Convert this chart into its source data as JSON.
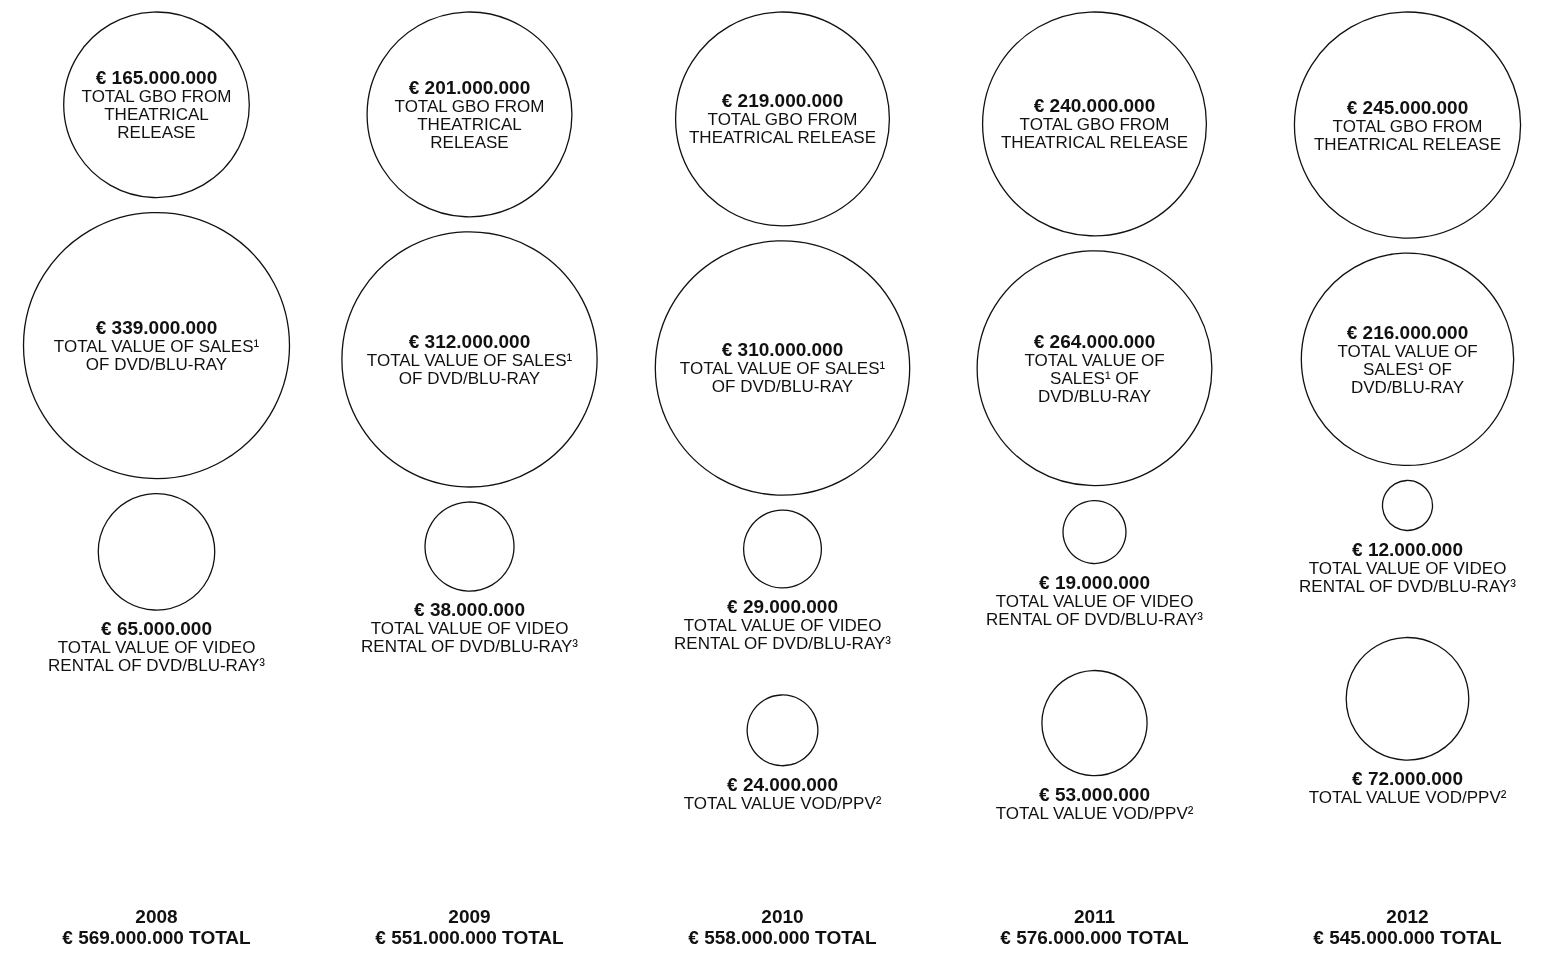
{
  "chart_data": [
    {
      "type": "other",
      "title": "2008",
      "subtitle": "€ 569.000.000 TOTAL",
      "series": [
        {
          "name": "TOTAL GBO FROM THEATRICAL RELEASE",
          "values": [
            165000000
          ],
          "value_labels": [
            "€ 165.000.000"
          ]
        },
        {
          "name": "TOTAL VALUE OF SALES¹ OF DVD/BLU-RAY",
          "values": [
            339000000
          ],
          "value_labels": [
            "€ 339.000.000"
          ]
        },
        {
          "name": "TOTAL VALUE OF VIDEO RENTAL OF DVD/BLU-RAY³",
          "values": [
            65000000
          ],
          "value_labels": [
            "€ 65.000.000"
          ]
        }
      ]
    },
    {
      "type": "other",
      "title": "2009",
      "subtitle": "€ 551.000.000 TOTAL",
      "series": [
        {
          "name": "TOTAL GBO FROM THEATRICAL RELEASE",
          "values": [
            201000000
          ],
          "value_labels": [
            "€ 201.000.000"
          ]
        },
        {
          "name": "TOTAL VALUE OF SALES¹ OF DVD/BLU-RAY",
          "values": [
            312000000
          ],
          "value_labels": [
            "€ 312.000.000"
          ]
        },
        {
          "name": "TOTAL VALUE OF VIDEO RENTAL OF DVD/BLU-RAY³",
          "values": [
            38000000
          ],
          "value_labels": [
            "€ 38.000.000"
          ]
        }
      ]
    },
    {
      "type": "other",
      "title": "2010",
      "subtitle": "€ 558.000.000 TOTAL",
      "series": [
        {
          "name": "TOTAL GBO FROM THEATRICAL RELEASE",
          "values": [
            219000000
          ],
          "value_labels": [
            "€ 219.000.000"
          ]
        },
        {
          "name": "TOTAL VALUE OF SALES¹ OF DVD/BLU-RAY",
          "values": [
            310000000
          ],
          "value_labels": [
            "€ 310.000.000"
          ]
        },
        {
          "name": "TOTAL VALUE OF VIDEO RENTAL OF DVD/BLU-RAY³",
          "values": [
            29000000
          ],
          "value_labels": [
            "€ 29.000.000"
          ]
        },
        {
          "name": "TOTAL VALUE VOD/PPV²",
          "values": [
            24000000
          ],
          "value_labels": [
            "€ 24.000.000"
          ]
        }
      ]
    },
    {
      "type": "other",
      "title": "2011",
      "subtitle": "€ 576.000.000 TOTAL",
      "series": [
        {
          "name": "TOTAL GBO FROM THEATRICAL RELEASE",
          "values": [
            240000000
          ],
          "value_labels": [
            "€ 240.000.000"
          ]
        },
        {
          "name": "TOTAL VALUE OF SALES¹ OF DVD/BLU-RAY",
          "values": [
            264000000
          ],
          "value_labels": [
            "€ 264.000.000"
          ]
        },
        {
          "name": "TOTAL VALUE OF VIDEO RENTAL OF DVD/BLU-RAY³",
          "values": [
            19000000
          ],
          "value_labels": [
            "€ 19.000.000"
          ]
        },
        {
          "name": "TOTAL VALUE VOD/PPV²",
          "values": [
            53000000
          ],
          "value_labels": [
            "€ 53.000.000"
          ]
        }
      ]
    },
    {
      "type": "other",
      "title": "2012",
      "subtitle": "€ 545.000.000 TOTAL",
      "series": [
        {
          "name": "TOTAL GBO FROM THEATRICAL RELEASE",
          "values": [
            245000000
          ],
          "value_labels": [
            "€ 245.000.000"
          ]
        },
        {
          "name": "TOTAL VALUE OF SALES¹ OF DVD/BLU-RAY",
          "values": [
            216000000
          ],
          "value_labels": [
            "€ 216.000.000"
          ]
        },
        {
          "name": "TOTAL VALUE OF VIDEO RENTAL OF DVD/BLU-RAY³",
          "values": [
            12000000
          ],
          "value_labels": [
            "€ 12.000.000"
          ]
        },
        {
          "name": "TOTAL VALUE VOD/PPV²",
          "values": [
            72000000
          ],
          "value_labels": [
            "€ 72.000.000"
          ]
        }
      ]
    }
  ]
}
